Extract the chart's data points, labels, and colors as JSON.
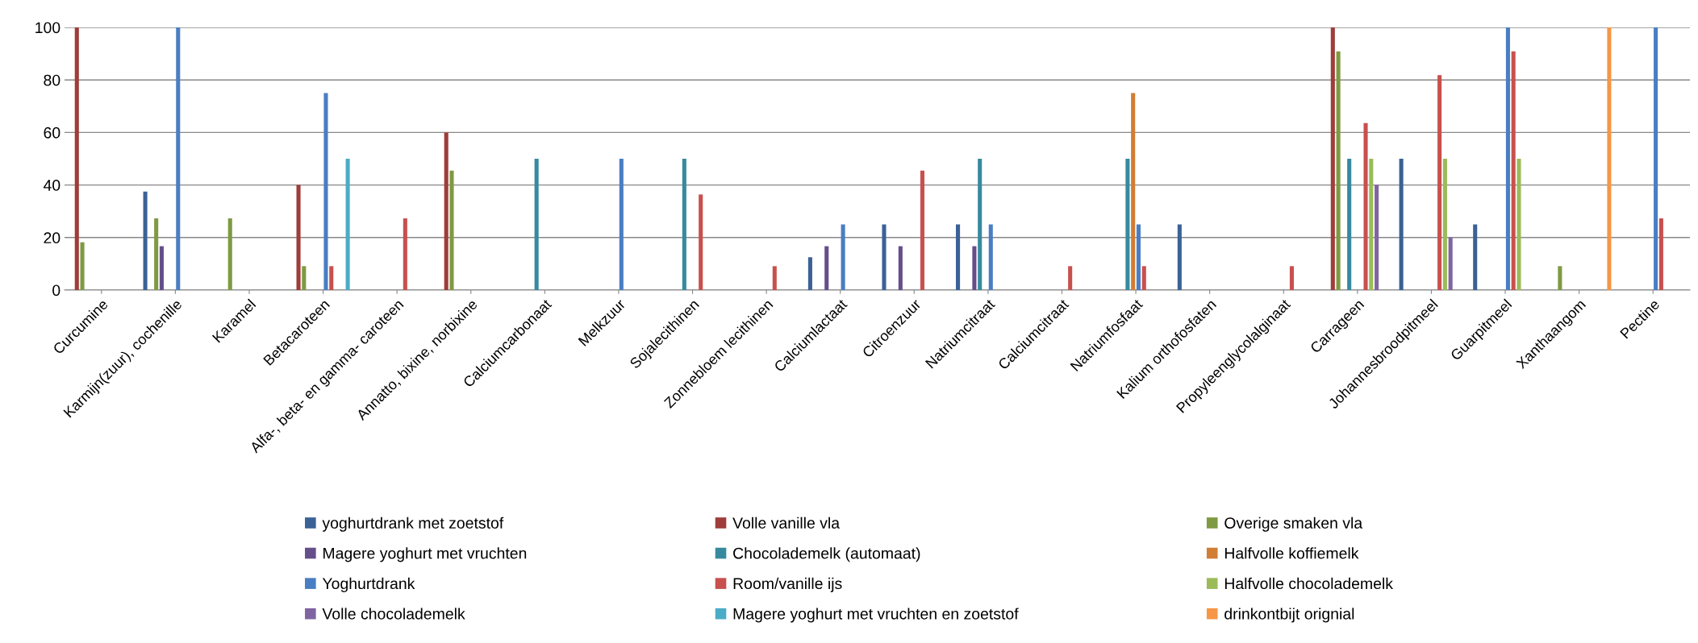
{
  "chart_data": {
    "type": "bar",
    "categories": [
      "Curcumine",
      "Karmijn(zuur), cochenille",
      "Karamel",
      "Betacaroteen",
      "Alfa-, beta- en gamma- caroteen",
      "Annatto, bixine, norbixine",
      "Calciumcarbonaat",
      "Melkzuur",
      "Sojalecithinen",
      "Zonnebloem lecithinen",
      "Calciumlactaat",
      "Citroenzuur",
      "Natriumcitraat",
      "Calciumcitraat",
      "Natriumfosfaat",
      "Kalium orthofosfaten",
      "Propyleenglycolalginaat",
      "Carrageen",
      "Johannesbroodpitmeel",
      "Guarpitmeel",
      "Xanthaangom",
      "Pectine"
    ],
    "series": [
      {
        "name": "yoghurtdrank met zoetstof",
        "color": "#3b6296",
        "values": [
          null,
          37.5,
          null,
          null,
          null,
          null,
          null,
          null,
          null,
          null,
          12.5,
          25,
          25,
          null,
          null,
          25,
          null,
          null,
          50,
          25,
          null,
          null
        ]
      },
      {
        "name": "Volle vanille vla",
        "color": "#9e3d3a",
        "values": [
          100,
          null,
          null,
          40,
          null,
          60,
          null,
          null,
          null,
          null,
          null,
          null,
          null,
          null,
          null,
          null,
          null,
          100,
          null,
          null,
          null,
          null
        ]
      },
      {
        "name": "Overige smaken vla",
        "color": "#7f9a42",
        "values": [
          18.2,
          27.3,
          27.3,
          9.1,
          null,
          45.5,
          null,
          null,
          null,
          null,
          null,
          null,
          null,
          null,
          null,
          null,
          null,
          90.9,
          null,
          null,
          9.1,
          null
        ]
      },
      {
        "name": "Magere yoghurt met vruchten",
        "color": "#654f8a",
        "values": [
          null,
          16.7,
          null,
          null,
          null,
          null,
          null,
          null,
          null,
          null,
          16.7,
          16.7,
          16.7,
          null,
          null,
          null,
          null,
          null,
          null,
          null,
          null,
          null
        ]
      },
      {
        "name": "Chocolademelk (automaat)",
        "color": "#378a9e",
        "values": [
          null,
          null,
          null,
          null,
          null,
          null,
          50,
          null,
          50,
          null,
          null,
          null,
          50,
          null,
          50,
          null,
          null,
          50,
          null,
          null,
          null,
          null
        ]
      },
      {
        "name": "Halfvolle koffiemelk",
        "color": "#d27d34",
        "values": [
          null,
          null,
          null,
          null,
          null,
          null,
          null,
          null,
          null,
          null,
          null,
          null,
          null,
          null,
          75,
          null,
          null,
          null,
          null,
          null,
          null,
          null
        ]
      },
      {
        "name": "Yoghurtdrank",
        "color": "#4a7ec2",
        "values": [
          null,
          100,
          null,
          75,
          null,
          null,
          null,
          50,
          null,
          null,
          25,
          null,
          25,
          null,
          25,
          null,
          null,
          null,
          null,
          100,
          null,
          100
        ]
      },
      {
        "name": "Room/vanille ijs",
        "color": "#c8504d",
        "values": [
          null,
          null,
          null,
          9.1,
          27.3,
          null,
          null,
          null,
          36.4,
          9.1,
          null,
          45.5,
          null,
          9.1,
          9.1,
          null,
          9.1,
          63.6,
          81.8,
          90.9,
          null,
          27.3
        ]
      },
      {
        "name": "Halfvolle chocolademelk",
        "color": "#9bbb59",
        "values": [
          null,
          null,
          null,
          null,
          null,
          null,
          null,
          null,
          null,
          null,
          null,
          null,
          null,
          null,
          null,
          null,
          null,
          50,
          50,
          50,
          null,
          null
        ]
      },
      {
        "name": "Volle chocolademelk",
        "color": "#8064a2",
        "values": [
          null,
          null,
          null,
          null,
          null,
          null,
          null,
          null,
          null,
          null,
          null,
          null,
          null,
          null,
          null,
          null,
          null,
          40,
          20,
          null,
          null,
          null
        ]
      },
      {
        "name": "Magere yoghurt met vruchten en zoetstof",
        "color": "#4bacc6",
        "values": [
          null,
          null,
          null,
          50,
          null,
          null,
          null,
          null,
          null,
          null,
          null,
          null,
          null,
          null,
          null,
          null,
          null,
          null,
          null,
          null,
          null,
          null
        ]
      },
      {
        "name": "drinkontbijt orignial",
        "color": "#f79646",
        "values": [
          null,
          null,
          null,
          null,
          null,
          null,
          null,
          null,
          null,
          null,
          null,
          null,
          null,
          null,
          null,
          null,
          null,
          null,
          null,
          null,
          100,
          null
        ]
      }
    ],
    "ylim": [
      0,
      100
    ],
    "yticks": [
      0,
      20,
      40,
      60,
      80,
      100
    ],
    "grid": "y",
    "legend": "bottom"
  }
}
